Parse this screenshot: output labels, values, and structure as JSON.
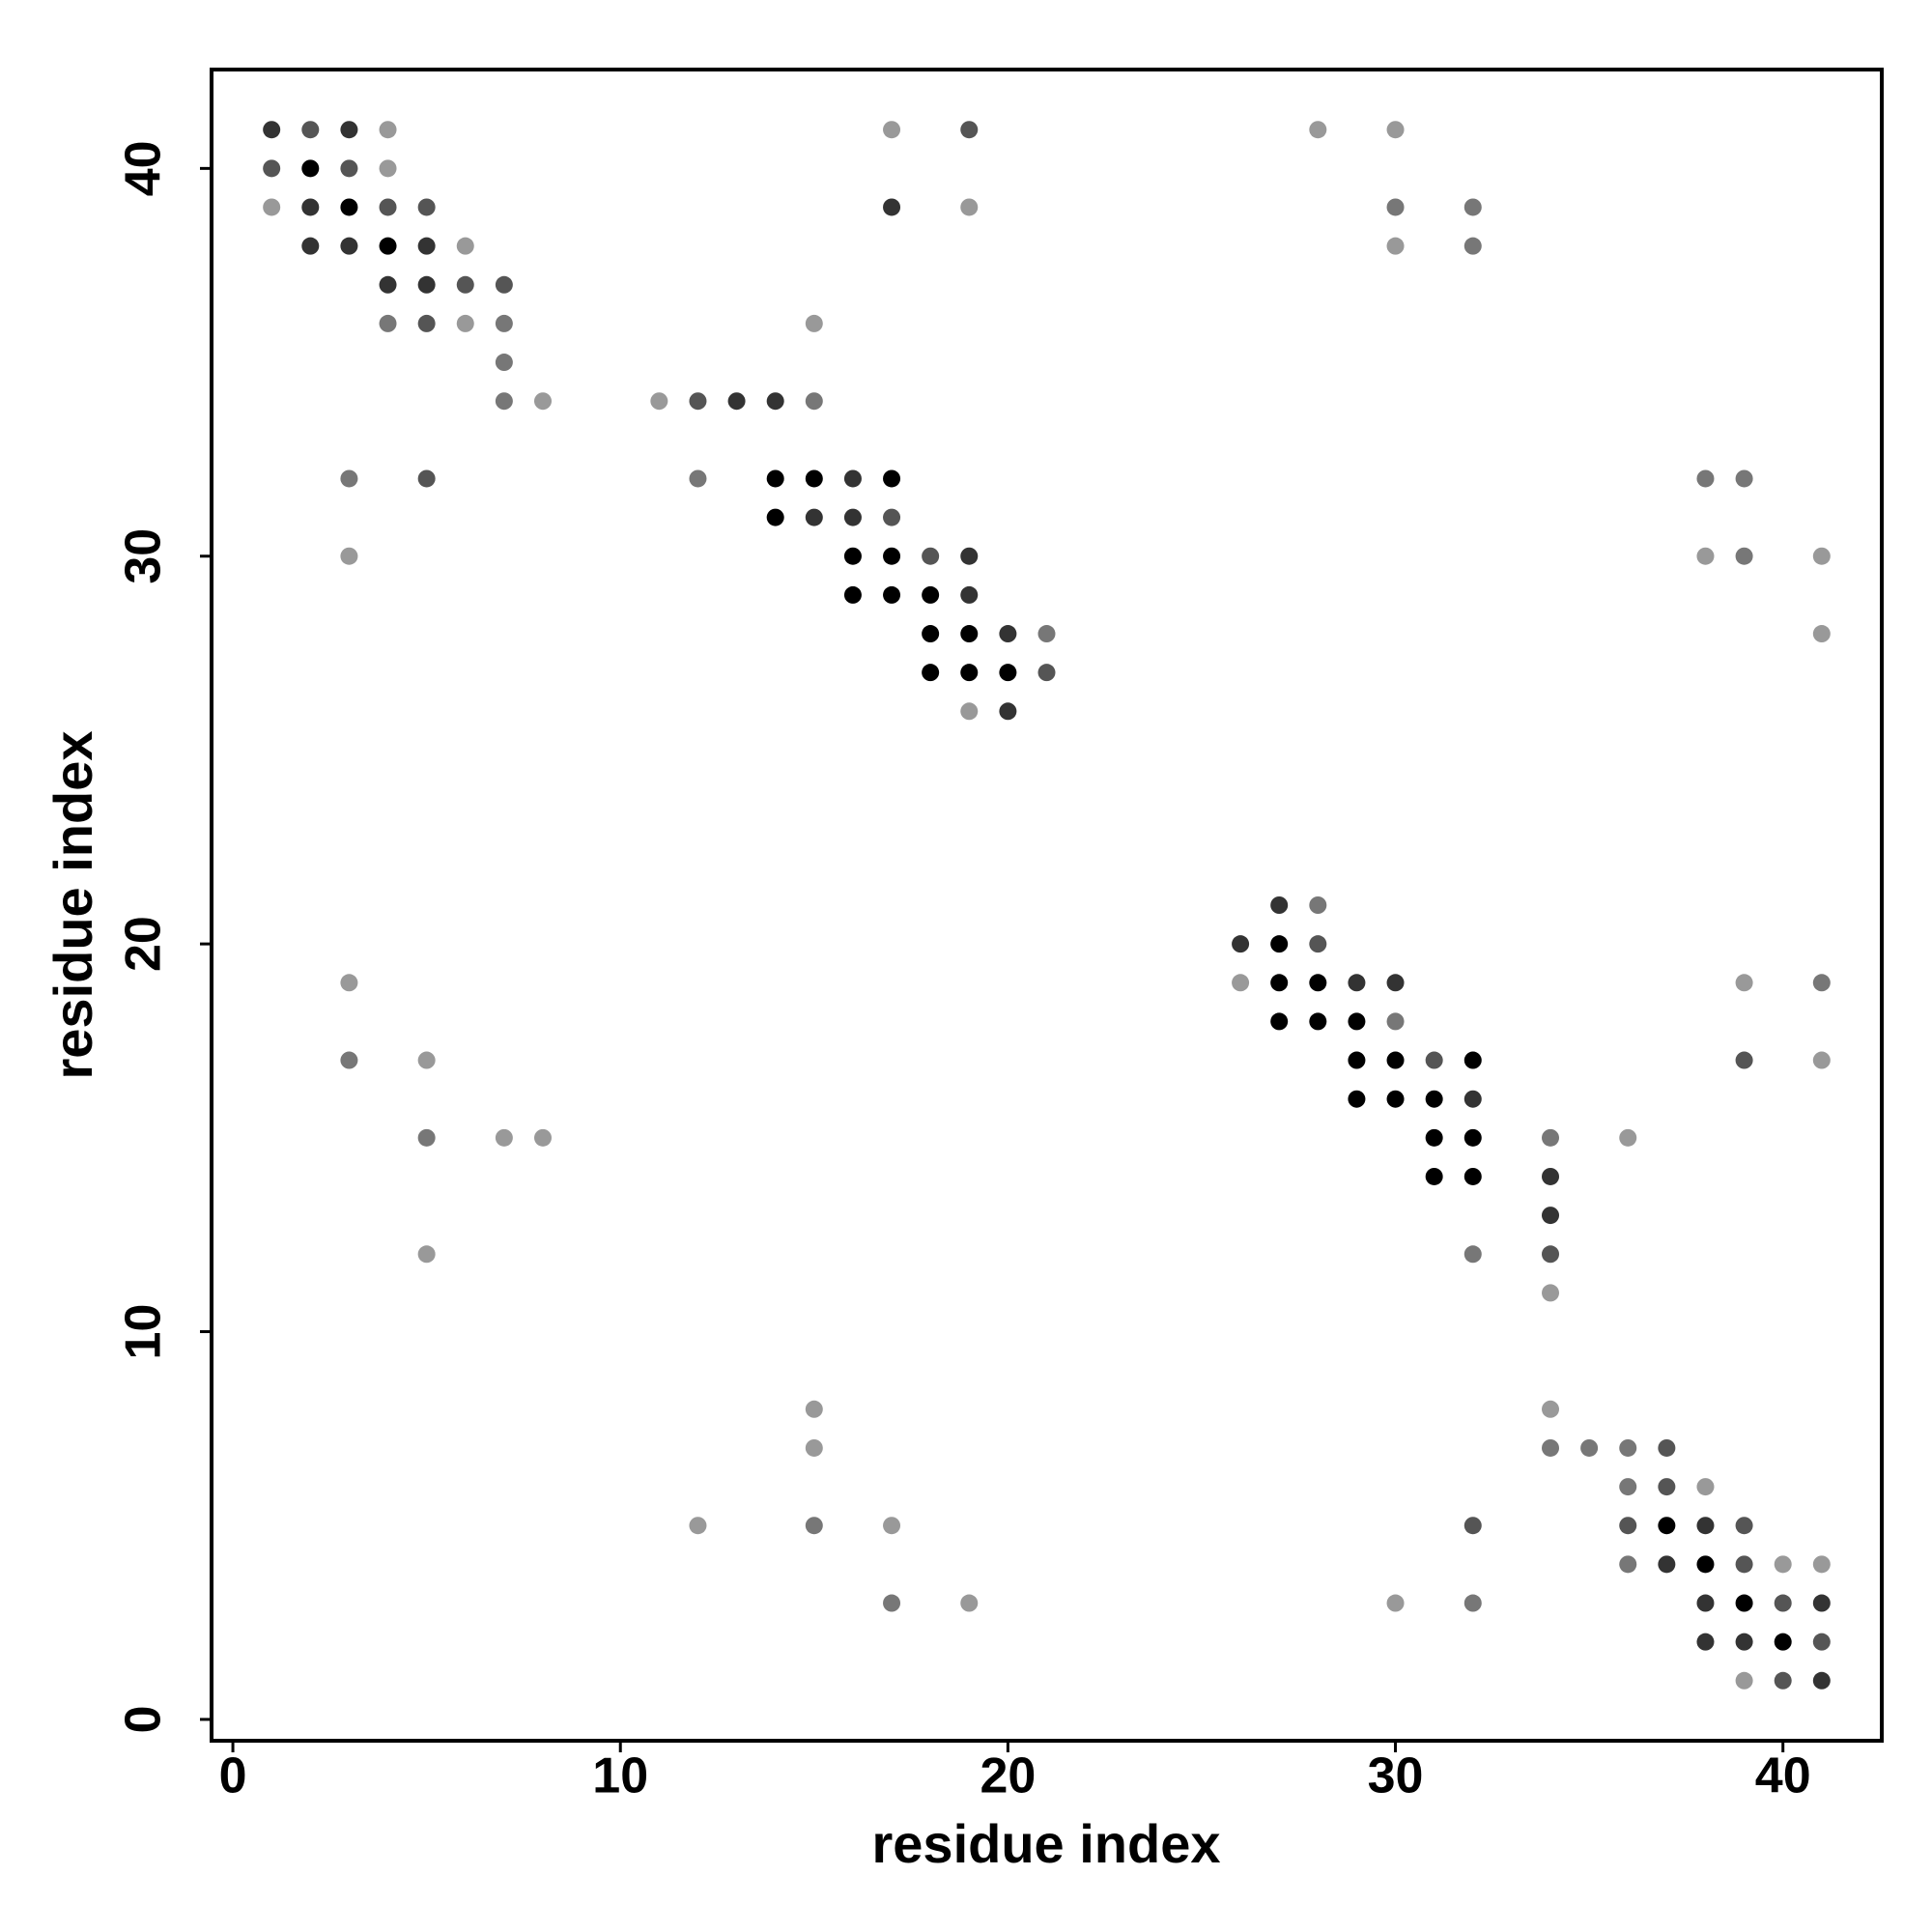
{
  "chart_data": {
    "type": "scatter",
    "xlabel": "residue index",
    "ylabel": "residue index",
    "xlim": [
      -0.55,
      42.55
    ],
    "ylim": [
      -0.55,
      42.55
    ],
    "xticks": [
      0,
      10,
      20,
      30,
      40
    ],
    "yticks": [
      0,
      10,
      20,
      30,
      40
    ],
    "x": [
      1,
      2,
      3,
      4,
      17,
      19,
      28,
      30,
      1,
      2,
      3,
      4,
      1,
      2,
      3,
      4,
      5,
      17,
      19,
      30,
      32,
      2,
      3,
      4,
      5,
      6,
      30,
      32,
      4,
      5,
      6,
      7,
      4,
      5,
      6,
      7,
      15,
      7,
      7,
      8,
      11,
      12,
      13,
      14,
      15,
      3,
      5,
      12,
      14,
      15,
      16,
      17,
      38,
      39,
      14,
      15,
      16,
      17,
      3,
      16,
      17,
      18,
      19,
      38,
      39,
      41,
      16,
      17,
      18,
      19,
      18,
      19,
      20,
      21,
      41,
      18,
      19,
      20,
      21,
      19,
      20,
      27,
      28,
      26,
      27,
      28,
      3,
      26,
      27,
      28,
      29,
      30,
      39,
      41,
      27,
      28,
      29,
      30,
      3,
      5,
      29,
      30,
      31,
      32,
      39,
      41,
      29,
      30,
      31,
      32,
      5,
      7,
      8,
      31,
      32,
      34,
      36,
      31,
      32,
      34,
      34,
      5,
      32,
      34,
      34,
      15,
      34,
      15,
      34,
      35,
      36,
      37,
      36,
      37,
      38,
      12,
      15,
      17,
      32,
      36,
      37,
      38,
      39,
      36,
      37,
      38,
      39,
      40,
      41,
      17,
      19,
      30,
      32,
      38,
      39,
      40,
      41,
      38,
      39,
      40,
      41,
      39,
      40,
      41
    ],
    "y": [
      41,
      41,
      41,
      41,
      41,
      41,
      41,
      41,
      40,
      40,
      40,
      40,
      39,
      39,
      39,
      39,
      39,
      39,
      39,
      39,
      39,
      38,
      38,
      38,
      38,
      38,
      38,
      38,
      37,
      37,
      37,
      37,
      36,
      36,
      36,
      36,
      36,
      35,
      34,
      34,
      34,
      34,
      34,
      34,
      34,
      32,
      32,
      32,
      32,
      32,
      32,
      32,
      32,
      32,
      31,
      31,
      31,
      31,
      30,
      30,
      30,
      30,
      30,
      30,
      30,
      30,
      29,
      29,
      29,
      29,
      28,
      28,
      28,
      28,
      28,
      27,
      27,
      27,
      27,
      26,
      26,
      21,
      21,
      20,
      20,
      20,
      19,
      19,
      19,
      19,
      19,
      19,
      19,
      19,
      18,
      18,
      18,
      18,
      17,
      17,
      17,
      17,
      17,
      17,
      17,
      17,
      16,
      16,
      16,
      16,
      15,
      15,
      15,
      15,
      15,
      15,
      15,
      14,
      14,
      14,
      13,
      12,
      12,
      12,
      11,
      8,
      8,
      7,
      7,
      7,
      7,
      7,
      6,
      6,
      6,
      5,
      5,
      5,
      5,
      5,
      5,
      5,
      5,
      4,
      4,
      4,
      4,
      4,
      4,
      3,
      3,
      3,
      3,
      3,
      3,
      3,
      3,
      2,
      2,
      2,
      2,
      1,
      1,
      1
    ],
    "colors": [
      "#333",
      "#555",
      "#333",
      "#999",
      "#999",
      "#555",
      "#999",
      "#999",
      "#555",
      "#000",
      "#555",
      "#999",
      "#999",
      "#333",
      "#000",
      "#555",
      "#555",
      "#333",
      "#999",
      "#777",
      "#777",
      "#333",
      "#333",
      "#000",
      "#333",
      "#999",
      "#999",
      "#777",
      "#333",
      "#333",
      "#555",
      "#555",
      "#777",
      "#555",
      "#999",
      "#777",
      "#999",
      "#777",
      "#777",
      "#999",
      "#999",
      "#555",
      "#333",
      "#333",
      "#777",
      "#777",
      "#555",
      "#777",
      "#000",
      "#000",
      "#333",
      "#000",
      "#777",
      "#777",
      "#000",
      "#333",
      "#333",
      "#555",
      "#999",
      "#000",
      "#000",
      "#555",
      "#333",
      "#999",
      "#777",
      "#999",
      "#000",
      "#000",
      "#000",
      "#333",
      "#000",
      "#000",
      "#333",
      "#777",
      "#999",
      "#000",
      "#000",
      "#000",
      "#555",
      "#999",
      "#333",
      "#333",
      "#777",
      "#333",
      "#000",
      "#555",
      "#999",
      "#999",
      "#000",
      "#000",
      "#333",
      "#333",
      "#999",
      "#777",
      "#000",
      "#000",
      "#000",
      "#777",
      "#777",
      "#999",
      "#000",
      "#000",
      "#555",
      "#000",
      "#555",
      "#999",
      "#000",
      "#000",
      "#000",
      "#333",
      "#777",
      "#999",
      "#999",
      "#000",
      "#000",
      "#777",
      "#999",
      "#000",
      "#000",
      "#333",
      "#333",
      "#999",
      "#777",
      "#555",
      "#999",
      "#999",
      "#999",
      "#999",
      "#777",
      "#777",
      "#777",
      "#555",
      "#777",
      "#555",
      "#999",
      "#999",
      "#777",
      "#999",
      "#555",
      "#555",
      "#000",
      "#333",
      "#555",
      "#777",
      "#333",
      "#000",
      "#555",
      "#999",
      "#999",
      "#777",
      "#999",
      "#999",
      "#777",
      "#333",
      "#000",
      "#555",
      "#333",
      "#333",
      "#333",
      "#000",
      "#555",
      "#999",
      "#555",
      "#333"
    ]
  }
}
